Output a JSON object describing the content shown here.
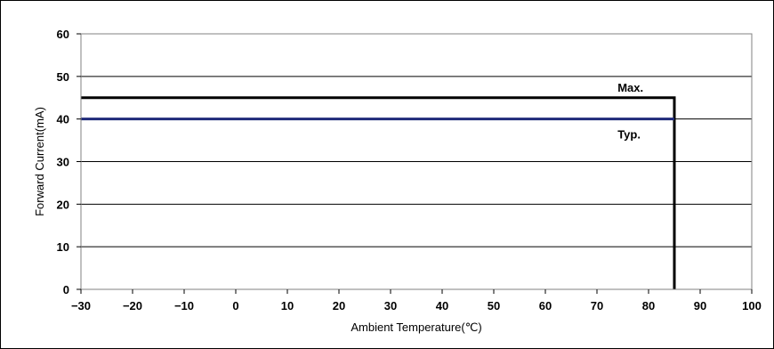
{
  "chart_data": {
    "type": "line",
    "title": "",
    "xlabel": "Ambient Temperature(℃)",
    "ylabel": "Forward Current(mA)",
    "xlim": [
      -30,
      100
    ],
    "ylim": [
      0,
      60
    ],
    "xticks": [
      -30,
      -20,
      -10,
      0,
      10,
      20,
      30,
      40,
      50,
      60,
      70,
      80,
      90,
      100
    ],
    "yticks": [
      0,
      10,
      20,
      30,
      40,
      50,
      60
    ],
    "xtick_labels": [
      "−30",
      "−20",
      "−10",
      "0",
      "10",
      "20",
      "30",
      "40",
      "50",
      "60",
      "70",
      "80",
      "90",
      "100"
    ],
    "ytick_labels": [
      "0",
      "10",
      "20",
      "30",
      "40",
      "50",
      "60"
    ],
    "grid": "horizontal",
    "series": [
      {
        "name": "Max.",
        "color": "#000000",
        "x": [
          -30,
          85,
          85
        ],
        "y": [
          45,
          45,
          0
        ]
      },
      {
        "name": "Typ.",
        "color": "#1f2a7a",
        "x": [
          -30,
          85
        ],
        "y": [
          40,
          40
        ]
      }
    ],
    "annotations": [
      {
        "text": "Max.",
        "x": 74,
        "y": 47.5
      },
      {
        "text": "Typ.",
        "x": 74,
        "y": 36.5
      }
    ]
  }
}
